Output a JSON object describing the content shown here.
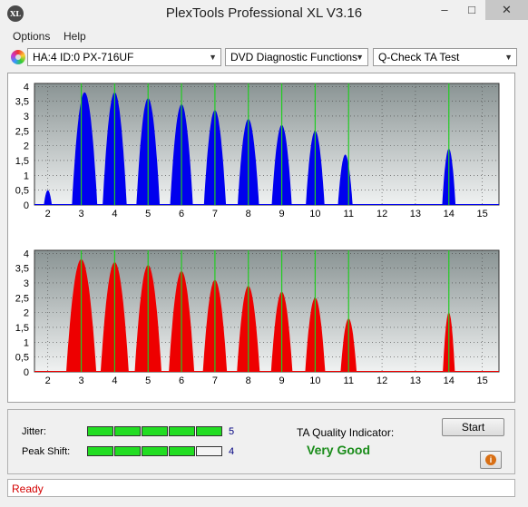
{
  "window": {
    "title": "PlexTools Professional XL V3.16",
    "icon_text": "XL",
    "min": "–",
    "max": "□",
    "close": "✕"
  },
  "menu": {
    "items": [
      "Options",
      "Help"
    ]
  },
  "toolbar": {
    "drive": "HA:4 ID:0  PX-716UF",
    "function": "DVD Diagnostic Functions",
    "test": "Q-Check TA Test"
  },
  "colors": {
    "plot_bg_top": "#8a9494",
    "plot_bg_bottom": "#f0f2f2",
    "top_fill": "#0000ee",
    "bottom_fill": "#ee0000",
    "marker": "#22cc22"
  },
  "chart_data": [
    {
      "type": "area",
      "title": "",
      "xlabel": "",
      "ylabel": "",
      "x_ticks": [
        2,
        3,
        4,
        5,
        6,
        7,
        8,
        9,
        10,
        11,
        12,
        13,
        14,
        15
      ],
      "y_ticks": [
        "0",
        "0,5",
        "1",
        "1,5",
        "2",
        "2,5",
        "3",
        "3,5",
        "4"
      ],
      "xlim": [
        1.6,
        15.5
      ],
      "ylim": [
        0,
        4.1
      ],
      "markers": [
        3,
        4,
        5,
        6,
        7,
        8,
        9,
        10,
        11,
        14
      ],
      "peaks": [
        {
          "center": 2.0,
          "height": 0.5,
          "width": 0.12
        },
        {
          "center": 3.1,
          "height": 3.8,
          "width": 0.38
        },
        {
          "center": 4.0,
          "height": 3.8,
          "width": 0.36
        },
        {
          "center": 5.0,
          "height": 3.6,
          "width": 0.35
        },
        {
          "center": 6.0,
          "height": 3.4,
          "width": 0.34
        },
        {
          "center": 7.0,
          "height": 3.2,
          "width": 0.33
        },
        {
          "center": 8.0,
          "height": 2.9,
          "width": 0.32
        },
        {
          "center": 9.0,
          "height": 2.7,
          "width": 0.3
        },
        {
          "center": 10.0,
          "height": 2.5,
          "width": 0.28
        },
        {
          "center": 10.9,
          "height": 1.7,
          "width": 0.22
        },
        {
          "center": 14.0,
          "height": 1.9,
          "width": 0.2
        }
      ]
    },
    {
      "type": "area",
      "title": "",
      "xlabel": "",
      "ylabel": "",
      "x_ticks": [
        2,
        3,
        4,
        5,
        6,
        7,
        8,
        9,
        10,
        11,
        12,
        13,
        14,
        15
      ],
      "y_ticks": [
        "0",
        "0,5",
        "1",
        "1,5",
        "2",
        "2,5",
        "3",
        "3,5",
        "4"
      ],
      "xlim": [
        1.6,
        15.5
      ],
      "ylim": [
        0,
        4.1
      ],
      "markers": [
        3,
        4,
        5,
        6,
        7,
        8,
        9,
        10,
        11,
        14
      ],
      "peaks": [
        {
          "center": 3.0,
          "height": 3.8,
          "width": 0.45
        },
        {
          "center": 4.0,
          "height": 3.7,
          "width": 0.42
        },
        {
          "center": 5.0,
          "height": 3.6,
          "width": 0.4
        },
        {
          "center": 6.0,
          "height": 3.4,
          "width": 0.38
        },
        {
          "center": 7.0,
          "height": 3.1,
          "width": 0.36
        },
        {
          "center": 8.0,
          "height": 2.9,
          "width": 0.34
        },
        {
          "center": 9.0,
          "height": 2.7,
          "width": 0.32
        },
        {
          "center": 10.0,
          "height": 2.5,
          "width": 0.3
        },
        {
          "center": 11.0,
          "height": 1.8,
          "width": 0.24
        },
        {
          "center": 14.0,
          "height": 2.0,
          "width": 0.18
        }
      ]
    }
  ],
  "metrics": {
    "jitter": {
      "label": "Jitter:",
      "value": "5",
      "level": 5,
      "max": 5
    },
    "peak_shift": {
      "label": "Peak Shift:",
      "value": "4",
      "level": 4,
      "max": 5
    }
  },
  "ta_quality": {
    "label": "TA Quality Indicator:",
    "value": "Very Good"
  },
  "buttons": {
    "start": "Start",
    "info": "i"
  },
  "status": {
    "text": "Ready"
  }
}
